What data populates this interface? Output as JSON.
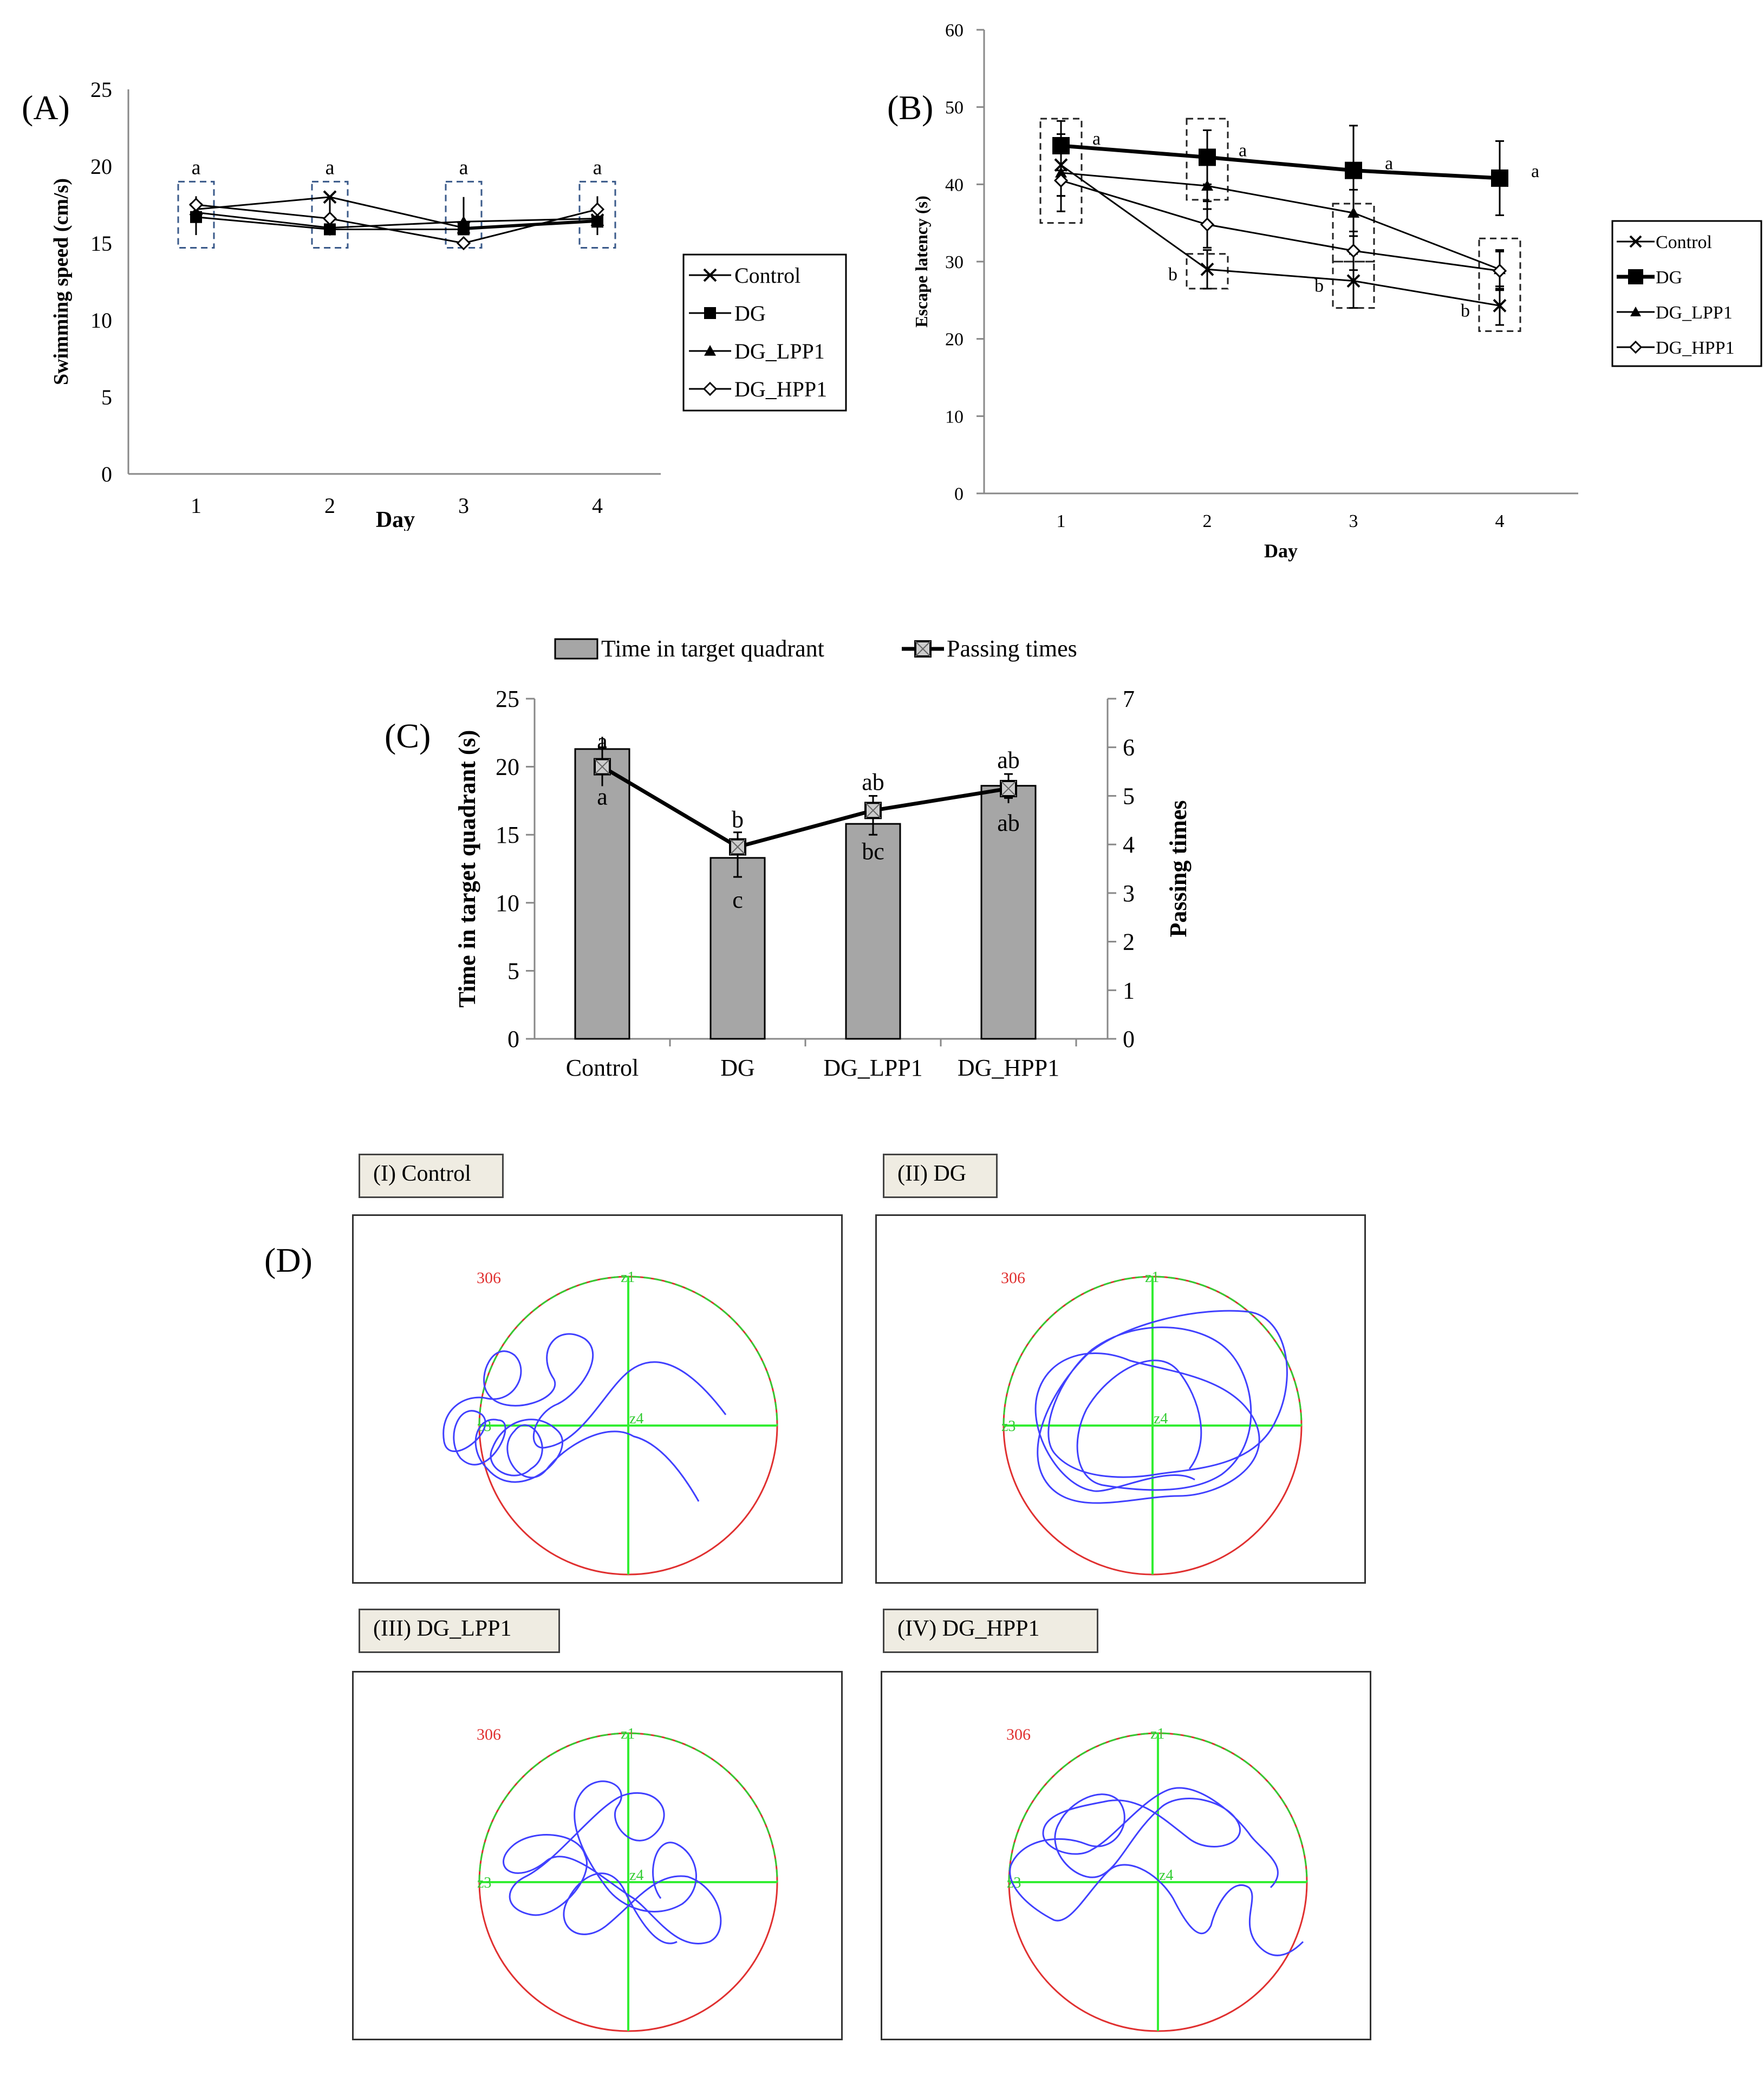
{
  "chart_data": [
    {
      "panel": "(A)",
      "type": "line",
      "xlabel": "Day",
      "ylabel": "Swimming speed (cm/s)",
      "ylim": [
        0,
        25
      ],
      "yticks": [
        "0",
        "5",
        "10",
        "15",
        "20",
        "25"
      ],
      "categories": [
        "1",
        "2",
        "3",
        "4"
      ],
      "series": [
        {
          "name": "Control",
          "marker": "x",
          "values": [
            17.2,
            18.0,
            16.0,
            16.5
          ]
        },
        {
          "name": "DG",
          "marker": "square",
          "values": [
            16.7,
            15.9,
            15.9,
            16.4
          ]
        },
        {
          "name": "DG_LPP1",
          "marker": "triangle",
          "values": [
            17.0,
            16.0,
            16.4,
            16.6
          ]
        },
        {
          "name": "DG_HPP1",
          "marker": "diamond",
          "values": [
            17.5,
            16.6,
            15.0,
            17.2
          ]
        }
      ],
      "error": [
        0.9,
        1.0,
        0.8,
        0.9
      ],
      "letters": [
        "a",
        "a",
        "a",
        "a"
      ],
      "legend": [
        "Control",
        "DG",
        "DG_LPP1",
        "DG_HPP1"
      ]
    },
    {
      "panel": "(B)",
      "type": "line",
      "xlabel": "Day",
      "ylabel": "Escape latency (s)",
      "ylim": [
        0,
        60
      ],
      "yticks": [
        "0",
        "10",
        "20",
        "30",
        "40",
        "50",
        "60"
      ],
      "categories": [
        "1",
        "2",
        "3",
        "4"
      ],
      "series": [
        {
          "name": "Control",
          "marker": "x",
          "values": [
            42.5,
            29.0,
            27.5,
            24.3
          ],
          "err": [
            4.0,
            2.5,
            3.5,
            2.5
          ]
        },
        {
          "name": "DG",
          "marker": "square",
          "values": [
            45.0,
            43.5,
            41.8,
            40.8
          ],
          "err": [
            3.2,
            3.5,
            5.8,
            4.8
          ]
        },
        {
          "name": "DG_LPP1",
          "marker": "triangle",
          "values": [
            41.5,
            39.8,
            36.3,
            29.0
          ],
          "err": [
            3.0,
            3.0,
            3.0,
            2.5
          ]
        },
        {
          "name": "DG_HPP1",
          "marker": "diamond",
          "values": [
            40.5,
            34.8,
            31.4,
            28.8
          ],
          "err": [
            4.0,
            3.0,
            2.5,
            2.5
          ]
        }
      ],
      "letters_top": [
        "a",
        "a",
        "a",
        "a"
      ],
      "letters_bottom": [
        "",
        "b",
        "b",
        "b"
      ],
      "legend": [
        "Control",
        "DG",
        "DG_LPP1",
        "DG_HPP1"
      ]
    },
    {
      "panel": "(C)",
      "type": "bar",
      "categories": [
        "Control",
        "DG",
        "DG_LPP1",
        "DG_HPP1"
      ],
      "ylabel_left": "Time in target quadrant (s)",
      "ylabel_right": "Passing times",
      "ylim_left": [
        0,
        25
      ],
      "ylim_right": [
        0,
        7
      ],
      "yticks_left": [
        "0",
        "5",
        "10",
        "15",
        "20",
        "25"
      ],
      "yticks_right": [
        "0",
        "1",
        "2",
        "3",
        "4",
        "5",
        "6",
        "7"
      ],
      "series": [
        {
          "name": "Time in target quadrant",
          "axis": "left",
          "values": [
            21.3,
            13.3,
            15.8,
            18.6
          ],
          "err": [
            0.9,
            1.4,
            0.8,
            0.9
          ]
        },
        {
          "name": "Passing times",
          "axis": "right",
          "values": [
            5.6,
            3.95,
            4.7,
            5.15
          ],
          "err": [
            0.4,
            0.3,
            0.3,
            0.3
          ]
        }
      ],
      "bar_letters": [
        "a",
        "c",
        "bc",
        "ab"
      ],
      "line_letters": [
        "a",
        "b",
        "ab",
        "ab"
      ]
    }
  ],
  "panel_d": {
    "label": "(D)",
    "panels": [
      {
        "title": "(I) Control"
      },
      {
        "title": "(II) DG"
      },
      {
        "title": "(III) DG_LPP1"
      },
      {
        "title": "(IV) DG_HPP1"
      }
    ],
    "corner_text": "306",
    "zone_labels": [
      "z1",
      "z3",
      "z4"
    ]
  },
  "colors": {
    "bar_fill": "#a6a6a6",
    "track": "#4040ff",
    "cross": "#33ee33",
    "circle_red": "#e03030",
    "circle_green": "#33cc33",
    "box_dash": "#3a5a8a"
  }
}
